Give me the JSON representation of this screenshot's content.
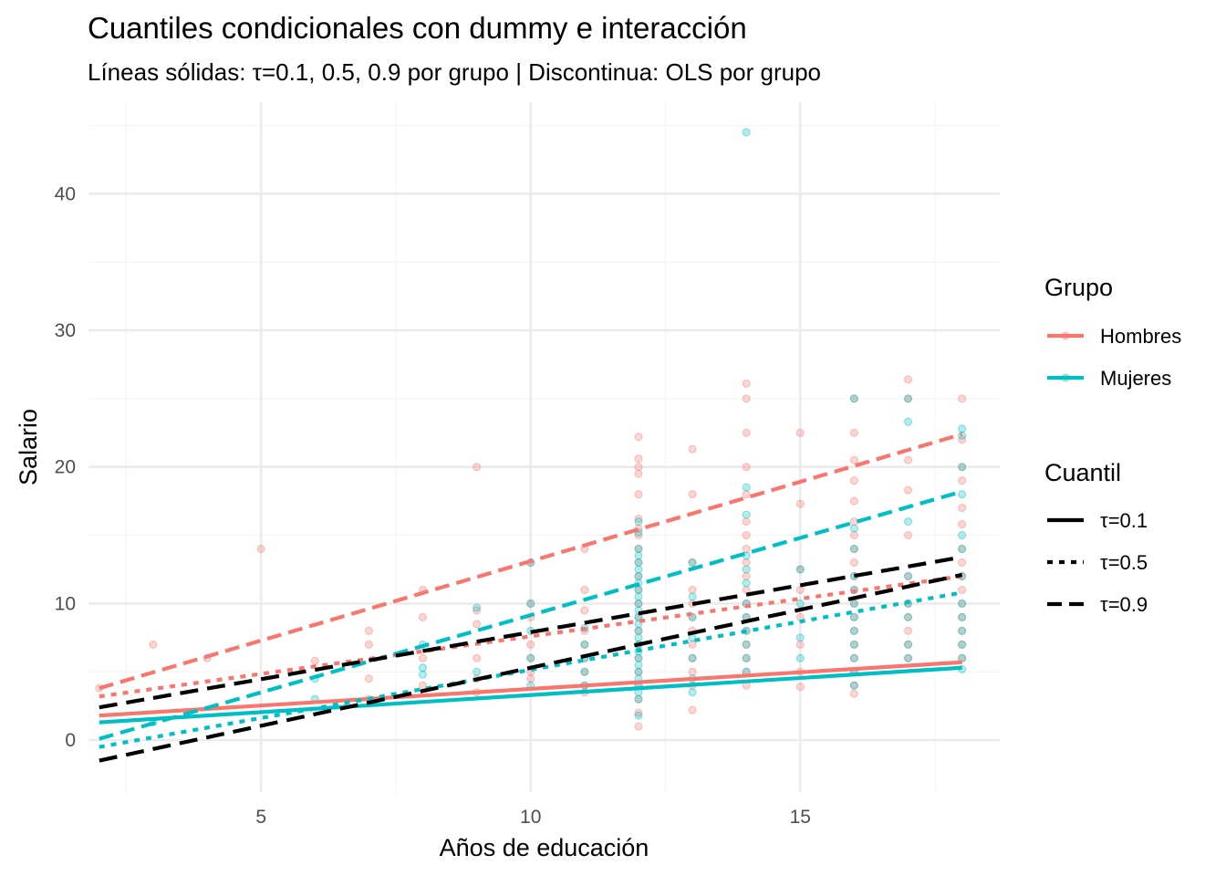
{
  "chart_data": {
    "type": "scatter",
    "title": "Cuantiles condicionales con dummy e interacción",
    "subtitle": "Líneas sólidas: τ=0.1, 0.5, 0.9 por grupo | Discontinua: OLS por grupo",
    "xlabel": "Años de educación",
    "ylabel": "Salario",
    "xlim": [
      1.8,
      18.7
    ],
    "ylim": [
      -3.8,
      46.7
    ],
    "x_ticks": [
      5,
      10,
      15
    ],
    "y_ticks": [
      0,
      10,
      20,
      30,
      40
    ],
    "grid": true,
    "colors": {
      "hombres": "#F8766D",
      "mujeres": "#00BFC4",
      "black": "#000000",
      "grid_major": "#EBEBEB",
      "grid_minor": "#F4F4F4"
    },
    "legend_grupo": {
      "title": "Grupo",
      "items": [
        {
          "label": "Hombres",
          "color": "#F8766D"
        },
        {
          "label": "Mujeres",
          "color": "#00BFC4"
        }
      ]
    },
    "legend_cuantil": {
      "title": "Cuantil",
      "items": [
        {
          "label": "τ=0.1",
          "dash": "solid"
        },
        {
          "label": "τ=0.5",
          "dash": "dotted"
        },
        {
          "label": "τ=0.9",
          "dash": "dashed"
        }
      ]
    },
    "lines": [
      {
        "name": "Hombres τ=0.1",
        "group": "Hombres",
        "color": "#F8766D",
        "style": "solid",
        "x": [
          2,
          18
        ],
        "y": [
          1.8,
          5.7
        ]
      },
      {
        "name": "Mujeres τ=0.1",
        "group": "Mujeres",
        "color": "#00BFC4",
        "style": "solid",
        "x": [
          2,
          18
        ],
        "y": [
          1.3,
          5.3
        ]
      },
      {
        "name": "Hombres τ=0.5",
        "group": "Hombres",
        "color": "#F8766D",
        "style": "dotted",
        "x": [
          2,
          18
        ],
        "y": [
          3.2,
          12.0
        ]
      },
      {
        "name": "Mujeres τ=0.5",
        "group": "Mujeres",
        "color": "#00BFC4",
        "style": "dotted",
        "x": [
          2,
          18
        ],
        "y": [
          -0.5,
          10.8
        ]
      },
      {
        "name": "Hombres τ=0.9",
        "group": "Hombres",
        "color": "#F8766D",
        "style": "dashed",
        "x": [
          2,
          18
        ],
        "y": [
          3.8,
          22.4
        ]
      },
      {
        "name": "Mujeres τ=0.9",
        "group": "Mujeres",
        "color": "#00BFC4",
        "style": "dashed",
        "x": [
          2,
          18
        ],
        "y": [
          0.1,
          18.2
        ]
      },
      {
        "name": "OLS Hombres",
        "group": "OLS",
        "color": "#000000",
        "style": "longdash",
        "x": [
          2,
          18
        ],
        "y": [
          2.4,
          13.4
        ]
      },
      {
        "name": "OLS Mujeres",
        "group": "OLS",
        "color": "#000000",
        "style": "longdash",
        "x": [
          2,
          18
        ],
        "y": [
          -1.5,
          12.1
        ]
      }
    ],
    "series": [
      {
        "name": "Hombres",
        "color": "#F8766D",
        "points": [
          [
            2,
            3.8
          ],
          [
            3,
            7.0
          ],
          [
            4,
            6.0
          ],
          [
            5,
            14.0
          ],
          [
            6,
            5.8
          ],
          [
            7,
            8.0
          ],
          [
            7,
            7.0
          ],
          [
            7,
            4.5
          ],
          [
            7,
            3.0
          ],
          [
            8,
            11.0
          ],
          [
            8,
            9.0
          ],
          [
            8,
            6.0
          ],
          [
            8,
            4.0
          ],
          [
            9,
            20.0
          ],
          [
            9,
            9.5
          ],
          [
            9,
            8.5
          ],
          [
            9,
            6.0
          ],
          [
            9,
            4.5
          ],
          [
            9,
            3.5
          ],
          [
            10,
            13.0
          ],
          [
            10,
            10.0
          ],
          [
            10,
            9.0
          ],
          [
            10,
            7.0
          ],
          [
            10,
            6.0
          ],
          [
            10,
            5.0
          ],
          [
            10,
            4.5
          ],
          [
            11,
            14.0
          ],
          [
            11,
            11.0
          ],
          [
            11,
            9.5
          ],
          [
            11,
            8.0
          ],
          [
            11,
            7.0
          ],
          [
            11,
            6.0
          ],
          [
            11,
            5.0
          ],
          [
            11,
            4.0
          ],
          [
            11,
            3.5
          ],
          [
            12,
            22.2
          ],
          [
            12,
            20.6
          ],
          [
            12,
            20.0
          ],
          [
            12,
            19.5
          ],
          [
            12,
            18.0
          ],
          [
            12,
            16.2
          ],
          [
            12,
            15.5
          ],
          [
            12,
            15.0
          ],
          [
            12,
            14.0
          ],
          [
            12,
            13.0
          ],
          [
            12,
            12.0
          ],
          [
            12,
            11.0
          ],
          [
            12,
            10.0
          ],
          [
            12,
            9.0
          ],
          [
            12,
            8.0
          ],
          [
            12,
            7.0
          ],
          [
            12,
            6.0
          ],
          [
            12,
            5.0
          ],
          [
            12,
            4.0
          ],
          [
            12,
            3.0
          ],
          [
            12,
            2.0
          ],
          [
            12,
            1.0
          ],
          [
            13,
            21.3
          ],
          [
            13,
            18.0
          ],
          [
            13,
            13.0
          ],
          [
            13,
            11.0
          ],
          [
            13,
            10.0
          ],
          [
            13,
            9.0
          ],
          [
            13,
            8.0
          ],
          [
            13,
            7.0
          ],
          [
            13,
            6.0
          ],
          [
            13,
            5.0
          ],
          [
            13,
            4.0
          ],
          [
            13,
            2.2
          ],
          [
            14,
            26.1
          ],
          [
            14,
            25.0
          ],
          [
            14,
            22.5
          ],
          [
            14,
            20.0
          ],
          [
            14,
            18.0
          ],
          [
            14,
            16.0
          ],
          [
            14,
            15.0
          ],
          [
            14,
            14.0
          ],
          [
            14,
            13.0
          ],
          [
            14,
            12.0
          ],
          [
            14,
            11.0
          ],
          [
            14,
            10.0
          ],
          [
            14,
            9.0
          ],
          [
            14,
            8.0
          ],
          [
            14,
            7.0
          ],
          [
            14,
            6.0
          ],
          [
            14,
            5.0
          ],
          [
            14,
            4.0
          ],
          [
            15,
            22.5
          ],
          [
            15,
            17.3
          ],
          [
            15,
            12.5
          ],
          [
            15,
            11.0
          ],
          [
            15,
            9.0
          ],
          [
            15,
            7.0
          ],
          [
            15,
            5.0
          ],
          [
            15,
            3.9
          ],
          [
            16,
            25.0
          ],
          [
            16,
            22.5
          ],
          [
            16,
            20.5
          ],
          [
            16,
            19.0
          ],
          [
            16,
            17.5
          ],
          [
            16,
            16.0
          ],
          [
            16,
            15.0
          ],
          [
            16,
            14.0
          ],
          [
            16,
            13.0
          ],
          [
            16,
            12.0
          ],
          [
            16,
            11.0
          ],
          [
            16,
            10.0
          ],
          [
            16,
            9.0
          ],
          [
            16,
            8.0
          ],
          [
            16,
            7.0
          ],
          [
            16,
            6.0
          ],
          [
            16,
            5.0
          ],
          [
            16,
            4.0
          ],
          [
            16,
            3.4
          ],
          [
            17,
            26.4
          ],
          [
            17,
            25.0
          ],
          [
            17,
            20.5
          ],
          [
            17,
            18.3
          ],
          [
            17,
            15.0
          ],
          [
            17,
            12.0
          ],
          [
            17,
            10.0
          ],
          [
            17,
            9.0
          ],
          [
            17,
            8.0
          ],
          [
            17,
            7.0
          ],
          [
            17,
            6.0
          ],
          [
            18,
            25.0
          ],
          [
            18,
            22.0
          ],
          [
            18,
            20.0
          ],
          [
            18,
            19.0
          ],
          [
            18,
            17.0
          ],
          [
            18,
            15.8
          ],
          [
            18,
            14.0
          ],
          [
            18,
            13.0
          ],
          [
            18,
            12.0
          ],
          [
            18,
            11.0
          ],
          [
            18,
            10.0
          ],
          [
            18,
            9.0
          ],
          [
            18,
            8.0
          ],
          [
            18,
            7.0
          ],
          [
            18,
            6.0
          ]
        ]
      },
      {
        "name": "Mujeres",
        "color": "#00BFC4",
        "points": [
          [
            3,
            1.3
          ],
          [
            6,
            4.5
          ],
          [
            6,
            3.0
          ],
          [
            8,
            7.0
          ],
          [
            8,
            5.3
          ],
          [
            8,
            4.8
          ],
          [
            9,
            9.7
          ],
          [
            9,
            5.0
          ],
          [
            10,
            13.0
          ],
          [
            10,
            10.0
          ],
          [
            10,
            8.0
          ],
          [
            10,
            6.0
          ],
          [
            10,
            4.0
          ],
          [
            11,
            8.2
          ],
          [
            11,
            7.0
          ],
          [
            11,
            6.0
          ],
          [
            11,
            5.0
          ],
          [
            11,
            4.0
          ],
          [
            12,
            16.0
          ],
          [
            12,
            15.2
          ],
          [
            12,
            14.0
          ],
          [
            12,
            13.5
          ],
          [
            12,
            13.0
          ],
          [
            12,
            12.5
          ],
          [
            12,
            12.0
          ],
          [
            12,
            11.5
          ],
          [
            12,
            11.0
          ],
          [
            12,
            10.5
          ],
          [
            12,
            10.0
          ],
          [
            12,
            9.5
          ],
          [
            12,
            9.0
          ],
          [
            12,
            8.5
          ],
          [
            12,
            8.0
          ],
          [
            12,
            7.5
          ],
          [
            12,
            7.0
          ],
          [
            12,
            6.5
          ],
          [
            12,
            6.0
          ],
          [
            12,
            5.5
          ],
          [
            12,
            5.0
          ],
          [
            12,
            4.5
          ],
          [
            12,
            4.0
          ],
          [
            12,
            3.5
          ],
          [
            12,
            3.0
          ],
          [
            12,
            1.8
          ],
          [
            13,
            13.0
          ],
          [
            13,
            10.5
          ],
          [
            13,
            9.0
          ],
          [
            13,
            7.5
          ],
          [
            13,
            6.0
          ],
          [
            13,
            4.5
          ],
          [
            13,
            3.5
          ],
          [
            14,
            44.5
          ],
          [
            14,
            18.5
          ],
          [
            14,
            16.5
          ],
          [
            14,
            13.5
          ],
          [
            14,
            12.5
          ],
          [
            14,
            11.5
          ],
          [
            14,
            10.0
          ],
          [
            14,
            9.0
          ],
          [
            14,
            8.0
          ],
          [
            14,
            7.0
          ],
          [
            14,
            6.0
          ],
          [
            14,
            5.0
          ],
          [
            15,
            12.5
          ],
          [
            15,
            10.0
          ],
          [
            15,
            7.5
          ],
          [
            15,
            6.0
          ],
          [
            16,
            25.0
          ],
          [
            16,
            15.5
          ],
          [
            16,
            14.0
          ],
          [
            16,
            12.0
          ],
          [
            16,
            11.0
          ],
          [
            16,
            10.0
          ],
          [
            16,
            9.0
          ],
          [
            16,
            8.0
          ],
          [
            16,
            7.0
          ],
          [
            16,
            6.0
          ],
          [
            16,
            5.0
          ],
          [
            16,
            4.0
          ],
          [
            17,
            25.0
          ],
          [
            17,
            23.3
          ],
          [
            17,
            16.0
          ],
          [
            17,
            12.0
          ],
          [
            17,
            10.0
          ],
          [
            17,
            9.0
          ],
          [
            17,
            7.0
          ],
          [
            17,
            6.0
          ],
          [
            18,
            22.8
          ],
          [
            18,
            22.3
          ],
          [
            18,
            20.0
          ],
          [
            18,
            18.0
          ],
          [
            18,
            15.0
          ],
          [
            18,
            14.0
          ],
          [
            18,
            12.0
          ],
          [
            18,
            10.0
          ],
          [
            18,
            9.0
          ],
          [
            18,
            8.0
          ],
          [
            18,
            7.0
          ],
          [
            18,
            6.0
          ],
          [
            18,
            5.2
          ]
        ]
      }
    ]
  }
}
